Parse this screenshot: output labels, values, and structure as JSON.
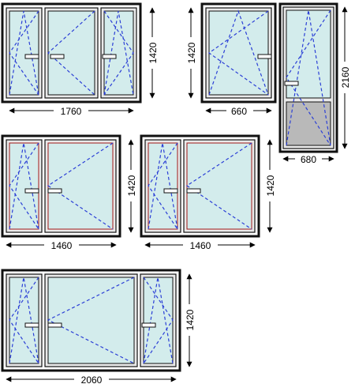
{
  "colors": {
    "frame": "#111111",
    "glass": "#d3ecec",
    "sash_fill": "#e9e9e9",
    "opening_line": "#2b3fd6",
    "red_seal": "#a01818",
    "dim_line": "#000000",
    "panel_grey": "#b9b9b9"
  },
  "windows": [
    {
      "id": "w1",
      "width_label": "1760",
      "height_label": "1420",
      "layout": "three-sash"
    },
    {
      "id": "w2",
      "width_label": "660",
      "height_label": "1420",
      "layout": "single-tilt-turn"
    },
    {
      "id": "w3",
      "width_label": "680",
      "height_label": "2160",
      "layout": "balcony-door"
    },
    {
      "id": "w4",
      "width_label": "1460",
      "height_label": "1420",
      "layout": "two-sash"
    },
    {
      "id": "w5",
      "width_label": "1460",
      "height_label": "1420",
      "layout": "two-sash"
    },
    {
      "id": "w6",
      "width_label": "2060",
      "height_label": "1420",
      "layout": "three-sash-wide"
    }
  ]
}
